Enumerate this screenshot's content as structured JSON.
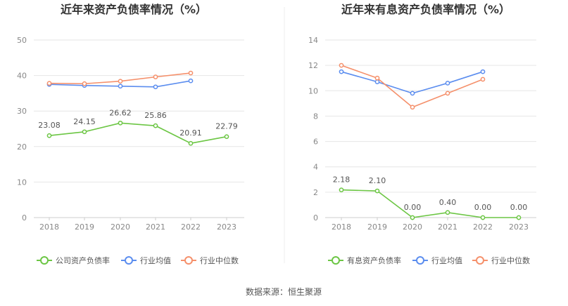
{
  "source_note": "数据来源：恒生聚源",
  "colors": {
    "company": "#6cc644",
    "industry_avg": "#5b8def",
    "industry_median": "#f5906b",
    "axis_text": "#888888",
    "grid": "#e6e6e6",
    "title": "#333333",
    "label": "#555555"
  },
  "chart_data": [
    {
      "type": "line",
      "title": "近年来资产负债率情况（%）",
      "categories": [
        "2018",
        "2019",
        "2020",
        "2021",
        "2022",
        "2023"
      ],
      "ylim": [
        0,
        50
      ],
      "yticks": [
        0,
        10,
        20,
        30,
        40,
        50
      ],
      "grid": true,
      "legend_position": "bottom",
      "series": [
        {
          "name": "公司资产负债率",
          "color_key": "company",
          "show_labels": true,
          "labels": [
            "23.08",
            "24.15",
            "26.62",
            "25.86",
            "20.91",
            "22.79"
          ],
          "values": [
            23.08,
            24.15,
            26.62,
            25.86,
            20.91,
            22.79
          ]
        },
        {
          "name": "行业均值",
          "color_key": "industry_avg",
          "show_labels": false,
          "values": [
            37.5,
            37.2,
            37.0,
            36.8,
            38.5,
            null
          ]
        },
        {
          "name": "行业中位数",
          "color_key": "industry_median",
          "show_labels": false,
          "values": [
            37.8,
            37.7,
            38.4,
            39.6,
            40.7,
            null
          ]
        }
      ]
    },
    {
      "type": "line",
      "title": "近年来有息资产负债率情况（%）",
      "categories": [
        "2018",
        "2019",
        "2020",
        "2021",
        "2022",
        "2023"
      ],
      "ylim": [
        0,
        14
      ],
      "yticks": [
        0,
        2,
        4,
        6,
        8,
        10,
        12,
        14
      ],
      "grid": true,
      "legend_position": "bottom",
      "series": [
        {
          "name": "有息资产负债率",
          "color_key": "company",
          "show_labels": true,
          "labels": [
            "2.18",
            "2.10",
            "0.00",
            "0.40",
            "0.00",
            "0.00"
          ],
          "values": [
            2.18,
            2.1,
            0.0,
            0.4,
            0.0,
            0.0
          ]
        },
        {
          "name": "行业均值",
          "color_key": "industry_avg",
          "show_labels": false,
          "values": [
            11.5,
            10.7,
            9.8,
            10.6,
            11.5,
            null
          ]
        },
        {
          "name": "行业中位数",
          "color_key": "industry_median",
          "show_labels": false,
          "values": [
            12.0,
            11.0,
            8.7,
            9.8,
            10.9,
            null
          ]
        }
      ]
    }
  ]
}
